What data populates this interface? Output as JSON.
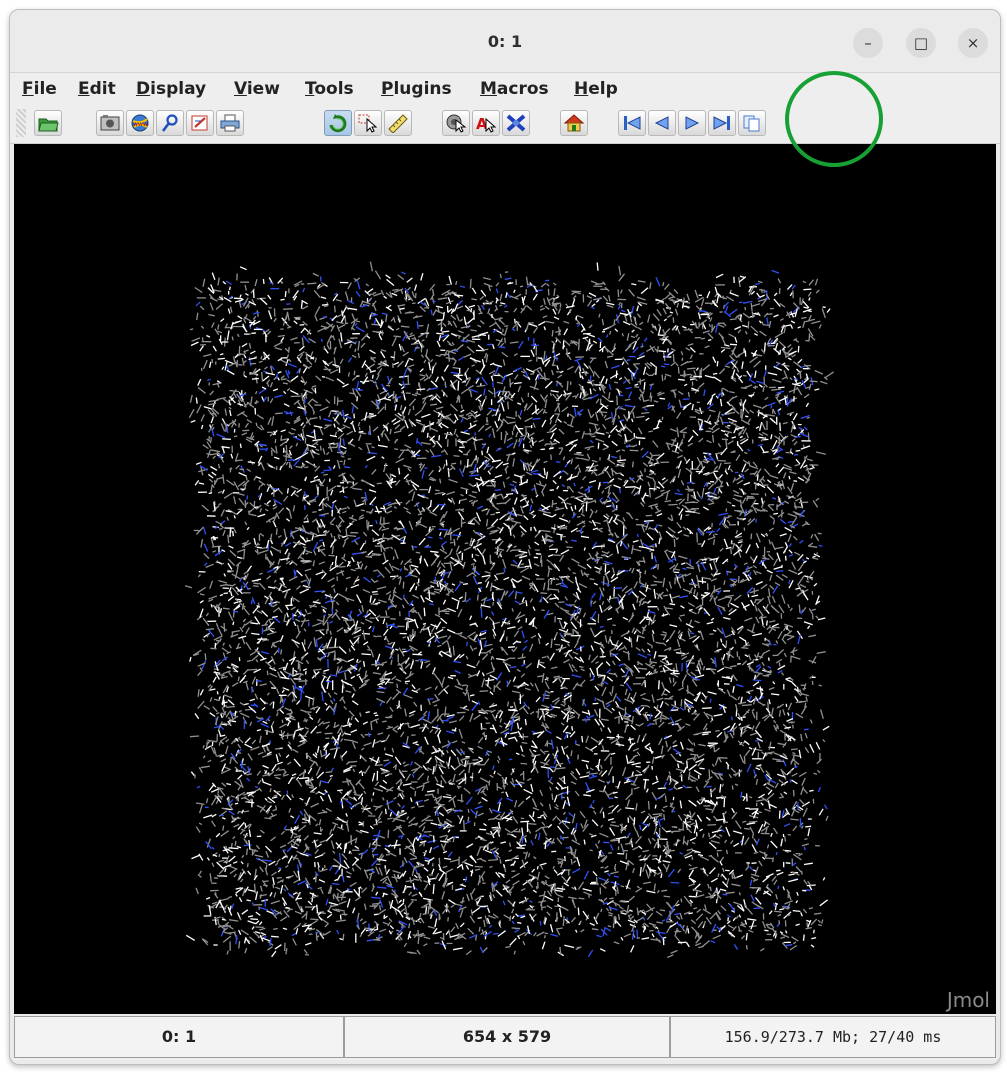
{
  "window": {
    "title": "0: 1"
  },
  "window_controls": {
    "minimize": "–",
    "maximize": "□",
    "close": "×"
  },
  "menu": [
    {
      "first": "F",
      "rest": "ile"
    },
    {
      "first": "E",
      "rest": "dit"
    },
    {
      "first": "D",
      "rest": "isplay"
    },
    {
      "first": "V",
      "rest": "iew"
    },
    {
      "first": "T",
      "rest": "ools"
    },
    {
      "first": "P",
      "rest": "lugins"
    },
    {
      "first": "M",
      "rest": "acros"
    },
    {
      "first": "H",
      "rest": "elp"
    }
  ],
  "toolbar": {
    "icons": [
      "open-icon",
      "screenshot-icon",
      "web-export-icon",
      "script-icon",
      "editor-icon",
      "print-icon",
      "rotate-icon",
      "select-icon",
      "ruler-icon",
      "pick-icon",
      "label-icon",
      "delete-atom-icon",
      "home-icon",
      "first-frame-icon",
      "previous-frame-icon",
      "next-frame-icon",
      "last-frame-icon",
      "duplicate-icon"
    ]
  },
  "viewer": {
    "watermark": "Jmol",
    "colors": {
      "background": "#000000",
      "carbon": "#909090",
      "hydrogen": "#ffffff",
      "nitrogen": "#3050f8"
    }
  },
  "status": {
    "frame": "0: 1",
    "size": "654 x 579",
    "memory": "156.9/273.7 Mb;  27/40 ms"
  },
  "annotation": {
    "color": "#17a033",
    "shape": "circle"
  }
}
